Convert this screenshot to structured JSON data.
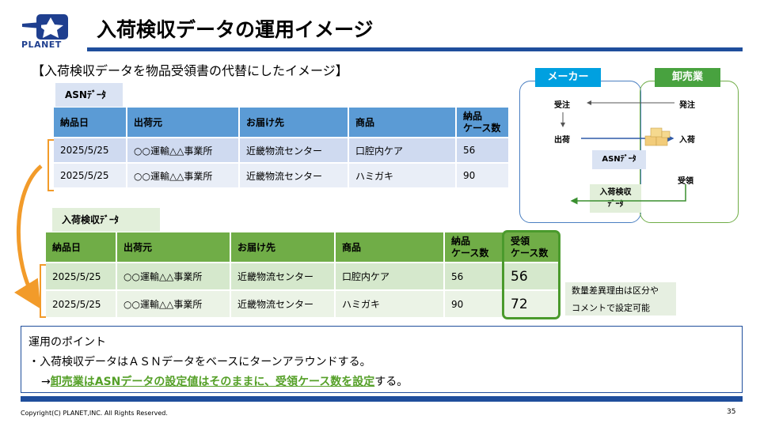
{
  "logo": {
    "text": "PLANET"
  },
  "title": "入荷検収データの運用イメージ",
  "subtitle": "【入荷検収データを物品受領書の代替にしたイメージ】",
  "asn": {
    "tag": "ASNﾃﾞｰﾀ",
    "headers": [
      "納品日",
      "出荷元",
      "お届け先",
      "商品",
      "納品\nケース数"
    ],
    "rows": [
      [
        "2025/5/25",
        "○○運輸△△事業所",
        "近畿物流センター",
        "口腔内ケア",
        "56"
      ],
      [
        "2025/5/25",
        "○○運輸△△事業所",
        "近畿物流センター",
        "ハミガキ",
        "90"
      ]
    ]
  },
  "receipt": {
    "tag": "入荷検収ﾃﾞｰﾀ",
    "headers": [
      "納品日",
      "出荷元",
      "お届け先",
      "商品",
      "納品\nケース数",
      "受領\nケース数"
    ],
    "rows": [
      [
        "2025/5/25",
        "○○運輸△△事業所",
        "近畿物流センター",
        "口腔内ケア",
        "56",
        "56"
      ],
      [
        "2025/5/25",
        "○○運輸△△事業所",
        "近畿物流センター",
        "ハミガキ",
        "90",
        "72"
      ]
    ]
  },
  "note": {
    "line1": "数量差異理由は区分や",
    "line2": "コメントで設定可能"
  },
  "diagram": {
    "maker": "メーカー",
    "wholesale": "卸売業",
    "order_recv": "受注",
    "order": "発注",
    "ship": "出荷",
    "arrival": "入荷",
    "receive": "受領",
    "asn": "ASNﾃﾞｰﾀ",
    "rcv_line1": "入荷検収",
    "rcv_line2": "ﾃﾞｰﾀ"
  },
  "points": {
    "heading": "運用のポイント",
    "bullet": "・入荷検収データはＡＳＮデータをベースにターンアラウンドする。",
    "arrow": "→",
    "highlight": "卸売業はASNデータの設定値はそのままに、受領ケース数を設定",
    "tail": "する。"
  },
  "footer": {
    "copyright": "Copyright(C) PLANET,INC. All Rights Reserved.",
    "page": "35"
  },
  "colors": {
    "asn_header": "#5b9bd5",
    "receipt_header": "#70ad47",
    "accent_bar": "#1f4e9c",
    "highlight": "#55a028"
  }
}
